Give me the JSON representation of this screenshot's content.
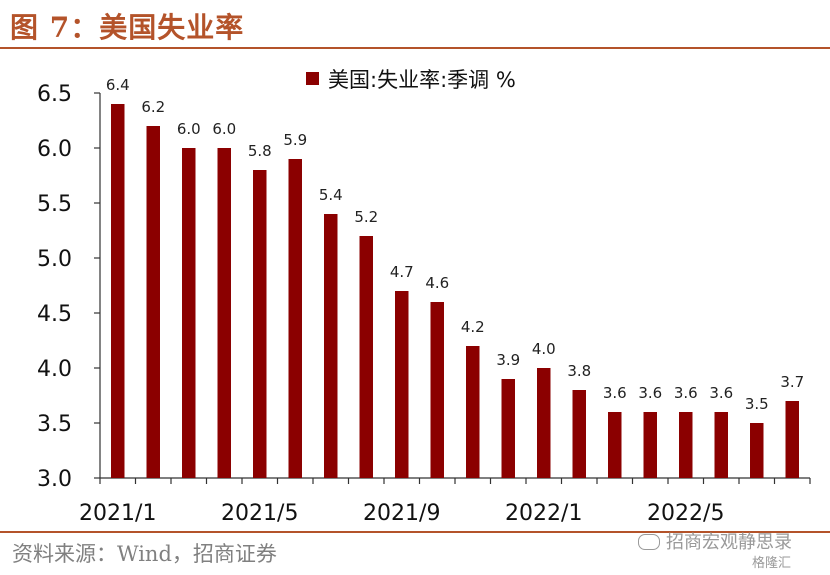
{
  "figure": {
    "title": "图 7：美国失业率",
    "source": "资料来源：Wind，招商证券",
    "watermark": "招商宏观静思录",
    "watermark2": "格隆汇"
  },
  "chart_data": {
    "type": "bar",
    "legend": "美国:失业率:季调 %",
    "legend_position": "top-center",
    "categories": [
      "2021/1",
      "2021/2",
      "2021/3",
      "2021/4",
      "2021/5",
      "2021/6",
      "2021/7",
      "2021/8",
      "2021/9",
      "2021/10",
      "2021/11",
      "2021/12",
      "2022/1",
      "2022/2",
      "2022/3",
      "2022/4",
      "2022/5",
      "2022/6",
      "2022/7",
      "2022/8"
    ],
    "values": [
      6.4,
      6.2,
      6.0,
      6.0,
      5.8,
      5.9,
      5.4,
      5.2,
      4.7,
      4.6,
      4.2,
      3.9,
      4.0,
      3.8,
      3.6,
      3.6,
      3.6,
      3.6,
      3.5,
      3.7
    ],
    "data_labels": [
      "6.4",
      "6.2",
      "6.0",
      "6.0",
      "5.8",
      "5.9",
      "5.4",
      "5.2",
      "4.7",
      "4.6",
      "4.2",
      "3.9",
      "4.0",
      "3.8",
      "3.6",
      "3.6",
      "3.6",
      "3.6",
      "3.5",
      "3.7"
    ],
    "x_tick_labels": [
      "2021/1",
      "2021/5",
      "2021/9",
      "2022/1",
      "2022/5"
    ],
    "x_tick_every": 4,
    "y_ticks": [
      "3.0",
      "3.5",
      "4.0",
      "4.5",
      "5.0",
      "5.5",
      "6.0",
      "6.5"
    ],
    "ylim": [
      3.0,
      6.5
    ],
    "grid": false,
    "colors": {
      "bar": "#8b0000",
      "axis": "#333333",
      "title": "#b4532a"
    }
  }
}
